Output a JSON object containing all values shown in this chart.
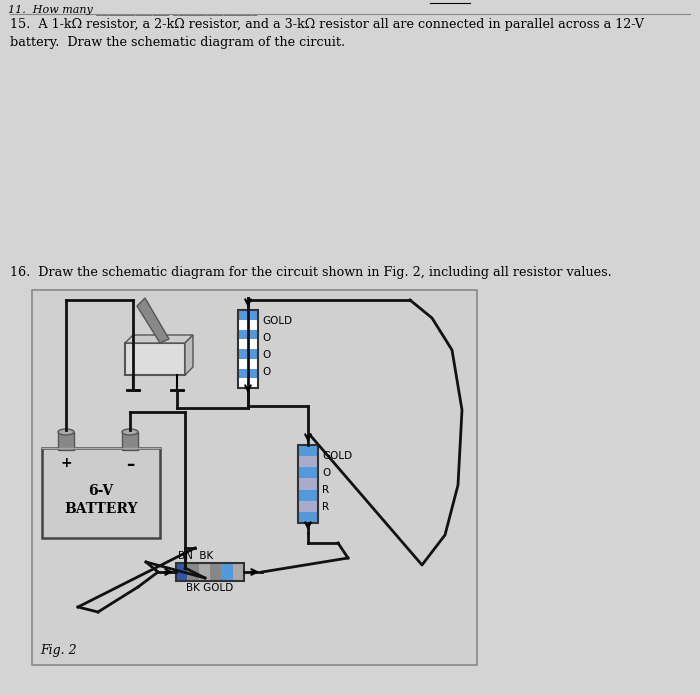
{
  "bg_color": "#d4d4d4",
  "text_color": "#000000",
  "title_text_15": "15.  A 1-kΩ resistor, a 2-kΩ resistor, and a 3-kΩ resistor all are connected in parallel across a 12-V\nbattery.  Draw the schematic diagram of the circuit.",
  "title_text_16": "16.  Draw the schematic diagram for the circuit shown in Fig. 2, including all resistor values.",
  "fig_label": "Fig. 2",
  "battery_label_line1": "6-V",
  "battery_label_line2": "BATTERY",
  "resistor1_labels": [
    "GOLD",
    "O",
    "O",
    "O"
  ],
  "resistor2_labels": [
    "GOLD",
    "O",
    "R",
    "R"
  ],
  "resistor3_label_top": "BN  BK",
  "resistor3_label_bot": "BK GOLD",
  "box_facecolor": "#d8d8d8",
  "box_edgecolor": "#888888",
  "bat_facecolor": "#d0d0d0",
  "bat_edgecolor": "#444444",
  "terminal_facecolor": "#888888",
  "terminal_edgecolor": "#555555",
  "wire_color": "#111111",
  "r1_stripe_colors": [
    "#5599dd",
    "#ffffff",
    "#5599dd",
    "#ffffff",
    "#5599dd",
    "#ffffff",
    "#5599dd",
    "#ffffff"
  ],
  "r2_stripe_colors": [
    "#5599dd",
    "#aaaacc",
    "#5599dd",
    "#aaaacc",
    "#5599dd",
    "#aaaacc",
    "#5599dd"
  ],
  "r3_stripe_colors": [
    "#3355aa",
    "#888888",
    "#aaaaaa",
    "#888888",
    "#5599dd",
    "#aaaaaa"
  ]
}
